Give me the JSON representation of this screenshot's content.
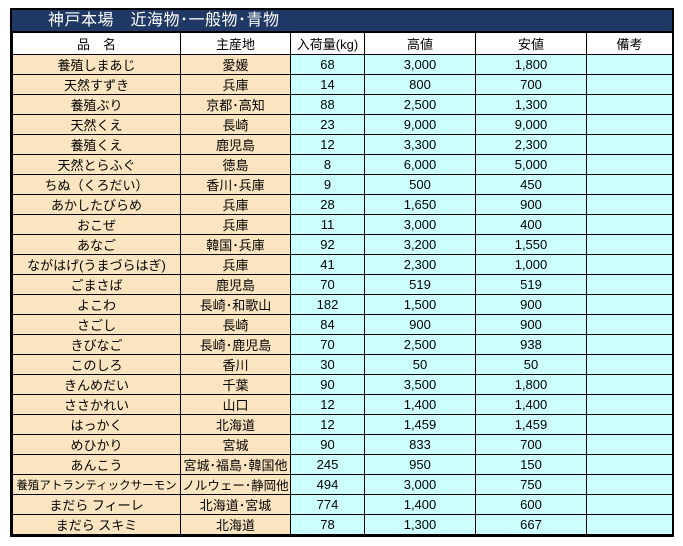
{
  "title": "神戸本場　近海物･一般物･青物",
  "columns": [
    "品　名",
    "主産地",
    "入荷量(kg)",
    "高値",
    "安値",
    "備考"
  ],
  "rows": [
    [
      "養殖しまあじ",
      "愛媛",
      "68",
      "3,000",
      "1,800",
      ""
    ],
    [
      "天然すずき",
      "兵庫",
      "14",
      "800",
      "700",
      ""
    ],
    [
      "養殖ぶり",
      "京都･高知",
      "88",
      "2,500",
      "1,300",
      ""
    ],
    [
      "天然くえ",
      "長崎",
      "23",
      "9,000",
      "9,000",
      ""
    ],
    [
      "養殖くえ",
      "鹿児島",
      "12",
      "3,300",
      "2,300",
      ""
    ],
    [
      "天然とらふぐ",
      "徳島",
      "8",
      "6,000",
      "5,000",
      ""
    ],
    [
      "ちぬ（くろだい）",
      "香川･兵庫",
      "9",
      "500",
      "450",
      ""
    ],
    [
      "あかしたびらめ",
      "兵庫",
      "28",
      "1,650",
      "900",
      ""
    ],
    [
      "おこぜ",
      "兵庫",
      "11",
      "3,000",
      "400",
      ""
    ],
    [
      "あなご",
      "韓国･兵庫",
      "92",
      "3,200",
      "1,550",
      ""
    ],
    [
      "ながはげ(うまづらはぎ)",
      "兵庫",
      "41",
      "2,300",
      "1,000",
      ""
    ],
    [
      "ごまさば",
      "鹿児島",
      "70",
      "519",
      "519",
      ""
    ],
    [
      "よこわ",
      "長崎･和歌山",
      "182",
      "1,500",
      "900",
      ""
    ],
    [
      "さごし",
      "長崎",
      "84",
      "900",
      "900",
      ""
    ],
    [
      "きびなご",
      "長崎･鹿児島",
      "70",
      "2,500",
      "938",
      ""
    ],
    [
      "このしろ",
      "香川",
      "30",
      "50",
      "50",
      ""
    ],
    [
      "きんめだい",
      "千葉",
      "90",
      "3,500",
      "1,800",
      ""
    ],
    [
      "ささかれい",
      "山口",
      "12",
      "1,400",
      "1,400",
      ""
    ],
    [
      "はっかく",
      "北海道",
      "12",
      "1,459",
      "1,459",
      ""
    ],
    [
      "めひかり",
      "宮城",
      "90",
      "833",
      "700",
      ""
    ],
    [
      "あんこう",
      "宮城･福島･韓国他",
      "245",
      "950",
      "150",
      ""
    ],
    [
      "養殖アトランティックサーモン",
      "ノルウェー･静岡他",
      "494",
      "3,000",
      "750",
      ""
    ],
    [
      "まだら フィーレ",
      "北海道･宮城",
      "774",
      "1,400",
      "600",
      ""
    ],
    [
      "まだら スキミ",
      "北海道",
      "78",
      "1,300",
      "667",
      ""
    ]
  ],
  "column_kinds": [
    "name",
    "name",
    "value",
    "value",
    "value",
    "value"
  ],
  "cell_names": [
    "cell-name",
    "cell-origin",
    "cell-quantity",
    "cell-high-price",
    "cell-low-price",
    "cell-remarks"
  ],
  "colors": {
    "title_bg": "#1F3864",
    "title_fg": "#FFFFFF",
    "name_cell_bg": "#FBE5C1",
    "value_cell_bg": "#CCFFFF",
    "header_bg": "#FFFFFF",
    "border": "#000000"
  }
}
